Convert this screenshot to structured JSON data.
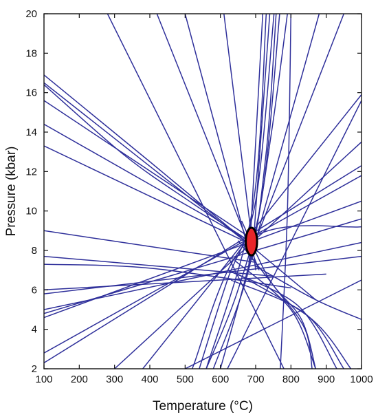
{
  "chart_data": {
    "type": "line",
    "title": "",
    "xlabel": "Temperature (°C)",
    "ylabel": "Pressure (kbar)",
    "xlim": [
      100,
      1000
    ],
    "ylim": [
      2,
      20
    ],
    "x_ticks": [
      100,
      200,
      300,
      400,
      500,
      600,
      700,
      800,
      900,
      1000
    ],
    "y_ticks": [
      2,
      4,
      6,
      8,
      10,
      12,
      14,
      16,
      18,
      20
    ],
    "grid": false,
    "line_color": "#2e2f9a",
    "marker": {
      "shape": "ellipse",
      "color": "#e8262a",
      "outline": "#000000",
      "x": 688,
      "y": 8.45,
      "rx": 16,
      "ry": 0.7
    },
    "series": [
      {
        "points": [
          [
            100,
            16.5
          ],
          [
            660,
            8.6
          ]
        ]
      },
      {
        "points": [
          [
            100,
            16.4
          ],
          [
            330,
            12.8
          ],
          [
            520,
            10.4
          ],
          [
            680,
            8.5
          ]
        ]
      },
      {
        "points": [
          [
            100,
            15.6
          ],
          [
            680,
            8.7
          ]
        ]
      },
      {
        "points": [
          [
            100,
            14.4
          ],
          [
            690,
            8.4
          ]
        ]
      },
      {
        "points": [
          [
            100,
            13.3
          ],
          [
            700,
            8.2
          ]
        ]
      },
      {
        "points": [
          [
            100,
            16.9
          ],
          [
            400,
            12.5
          ],
          [
            870,
            5.5
          ]
        ]
      },
      {
        "points": [
          [
            100,
            9.0
          ],
          [
            400,
            8.2
          ],
          [
            700,
            7.4
          ]
        ]
      },
      {
        "points": [
          [
            100,
            7.7
          ],
          [
            750,
            6.7
          ]
        ]
      },
      {
        "points": [
          [
            100,
            7.3
          ],
          [
            400,
            7.1
          ],
          [
            800,
            6.1
          ]
        ]
      },
      {
        "points": [
          [
            100,
            6.0
          ],
          [
            900,
            6.8
          ]
        ]
      },
      {
        "points": [
          [
            100,
            5.8
          ],
          [
            1000,
            7.7
          ]
        ]
      },
      {
        "points": [
          [
            100,
            5.0
          ],
          [
            1000,
            8.4
          ]
        ]
      },
      {
        "points": [
          [
            100,
            4.8
          ],
          [
            1000,
            9.6
          ]
        ]
      },
      {
        "points": [
          [
            100,
            4.6
          ],
          [
            1000,
            10.5
          ]
        ]
      },
      {
        "points": [
          [
            100,
            2.8
          ],
          [
            1000,
            11.8
          ]
        ]
      },
      {
        "points": [
          [
            100,
            2.3
          ],
          [
            1000,
            12.3
          ]
        ]
      },
      {
        "points": [
          [
            300,
            2.0
          ],
          [
            1000,
            13.5
          ]
        ]
      },
      {
        "points": [
          [
            380,
            2.0
          ],
          [
            1000,
            15.9
          ]
        ]
      },
      {
        "points": [
          [
            620,
            2.0
          ],
          [
            1000,
            15.6
          ]
        ]
      },
      {
        "points": [
          [
            500,
            2.0
          ],
          [
            1000,
            6.5
          ]
        ]
      },
      {
        "points": [
          [
            280,
            20.0
          ],
          [
            780,
            2.0
          ]
        ]
      },
      {
        "points": [
          [
            420,
            20.0
          ],
          [
            710,
            7.0
          ]
        ]
      },
      {
        "points": [
          [
            500,
            20.0
          ],
          [
            680,
            8.0
          ]
        ]
      },
      {
        "points": [
          [
            610,
            20.0
          ],
          [
            700,
            7.0
          ]
        ]
      },
      {
        "points": [
          [
            720,
            20.0
          ],
          [
            680,
            7.0
          ]
        ]
      },
      {
        "points": [
          [
            740,
            20.0
          ],
          [
            690,
            7.5
          ]
        ]
      },
      {
        "points": [
          [
            880,
            20.0
          ],
          [
            700,
            8.5
          ]
        ]
      },
      {
        "points": [
          [
            950,
            20.0
          ],
          [
            695,
            8.3
          ]
        ]
      },
      {
        "points": [
          [
            540,
            2.0
          ],
          [
            620,
            6.5
          ],
          [
            700,
            10.5
          ],
          [
            752,
            20.0
          ]
        ]
      },
      {
        "points": [
          [
            560,
            2.0
          ],
          [
            650,
            6.0
          ],
          [
            720,
            11.0
          ],
          [
            768,
            20.0
          ]
        ]
      },
      {
        "points": [
          [
            580,
            2.0
          ],
          [
            680,
            7.0
          ],
          [
            730,
            13.0
          ],
          [
            758,
            20.0
          ]
        ]
      },
      {
        "points": [
          [
            600,
            2.0
          ],
          [
            690,
            8.0
          ],
          [
            745,
            14.0
          ],
          [
            790,
            20.0
          ]
        ]
      },
      {
        "points": [
          [
            560,
            2.0
          ],
          [
            690,
            10.0
          ],
          [
            730,
            20.0
          ]
        ]
      },
      {
        "points": [
          [
            770,
            2.0
          ],
          [
            790,
            10.0
          ],
          [
            800,
            20.0
          ]
        ]
      },
      {
        "points": [
          [
            660,
            9.5
          ],
          [
            740,
            6.5
          ],
          [
            830,
            4.5
          ],
          [
            870,
            2.0
          ]
        ]
      },
      {
        "points": [
          [
            650,
            8.5
          ],
          [
            760,
            6.0
          ],
          [
            840,
            4.0
          ],
          [
            860,
            2.0
          ]
        ]
      },
      {
        "points": [
          [
            640,
            7.5
          ],
          [
            800,
            5.0
          ],
          [
            870,
            2.0
          ]
        ]
      },
      {
        "points": [
          [
            620,
            7.0
          ],
          [
            820,
            5.2
          ],
          [
            930,
            2.0
          ]
        ]
      },
      {
        "points": [
          [
            630,
            6.5
          ],
          [
            840,
            4.8
          ],
          [
            950,
            2.0
          ]
        ]
      },
      {
        "points": [
          [
            650,
            6.8
          ],
          [
            860,
            4.5
          ],
          [
            970,
            2.0
          ]
        ]
      },
      {
        "points": [
          [
            700,
            7.2
          ],
          [
            870,
            5.5
          ],
          [
            1000,
            4.5
          ]
        ]
      },
      {
        "points": [
          [
            520,
            2.0
          ],
          [
            680,
            8.5
          ],
          [
            1000,
            9.2
          ]
        ]
      }
    ]
  }
}
